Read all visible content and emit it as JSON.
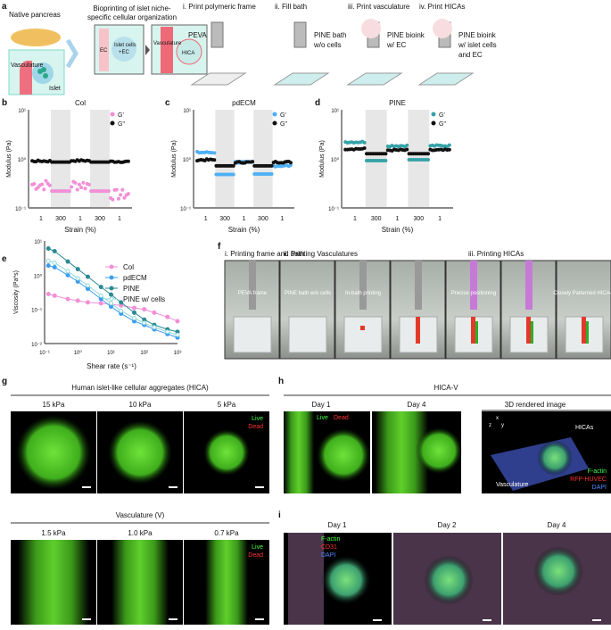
{
  "panel_labels": [
    "a",
    "b",
    "c",
    "d",
    "e",
    "f",
    "g",
    "h",
    "i"
  ],
  "a": {
    "native_title": "Native pancreas",
    "vasculature": "Vasculature",
    "islet": "Islet",
    "bioprint_title_1": "Bioprinting of islet niche-",
    "bioprint_title_2": "specific cellular organization",
    "ec": "EC",
    "islet_cells": "Islet cells",
    "plus_ec": "+EC",
    "vasc_small": "Vasculature",
    "hica": "HICA",
    "steps": [
      {
        "title": "i. Print polymeric frame",
        "desc": [
          "PEVA"
        ]
      },
      {
        "title": "ii. Fill bath",
        "desc": [
          "PINE bath",
          "w/o cells"
        ]
      },
      {
        "title": "iii. Print vasculature",
        "desc": [
          "PINE bioink",
          "w/ EC"
        ]
      },
      {
        "title": "iv. Print HICAs",
        "desc": [
          "PINE bioink",
          "w/ islet cells",
          "and EC"
        ]
      }
    ]
  },
  "chart_data": [
    {
      "type": "scatter",
      "title": "Col",
      "ylabel": "Modulus (Pa)",
      "xlabel": "Strain (%)",
      "yscale": "log",
      "ylim": [
        0.1,
        10
      ],
      "yticks": [
        "10¹",
        "10⁰",
        "10⁻¹"
      ],
      "segments": [
        "1",
        "300",
        "1",
        "300",
        "1"
      ],
      "shaded": [
        1,
        3
      ],
      "legend": "top-right",
      "series": [
        {
          "name": "G'",
          "color": "#f28fd6",
          "values": [
            0.3,
            0.22,
            0.3,
            0.22,
            0.19
          ]
        },
        {
          "name": "G\"",
          "color": "#111111",
          "values": [
            0.9,
            0.86,
            0.92,
            0.86,
            0.88
          ]
        }
      ]
    },
    {
      "type": "scatter",
      "title": "pdECM",
      "ylabel": "Modulus (Pa)",
      "xlabel": "Strain (%)",
      "yscale": "log",
      "ylim": [
        0.1,
        10
      ],
      "yticks": [
        "10¹",
        "10⁰",
        "10⁻¹"
      ],
      "segments": [
        "1",
        "300",
        "1",
        "300",
        "1"
      ],
      "shaded": [
        1,
        3
      ],
      "legend": "top-right",
      "series": [
        {
          "name": "G'",
          "color": "#4fb0f5",
          "values": [
            1.35,
            0.48,
            0.85,
            0.49,
            0.72
          ]
        },
        {
          "name": "G\"",
          "color": "#111111",
          "values": [
            0.95,
            0.72,
            0.85,
            0.72,
            0.86
          ]
        }
      ]
    },
    {
      "type": "scatter",
      "title": "PINE",
      "ylabel": "Modulus (Pa)",
      "xlabel": "Strain (%)",
      "yscale": "log",
      "ylim": [
        0.1,
        10
      ],
      "yticks": [
        "10¹",
        "10⁰",
        "10⁻¹"
      ],
      "segments": [
        "1",
        "300",
        "1",
        "300",
        "1"
      ],
      "shaded": [
        1,
        3
      ],
      "legend": "top-right",
      "series": [
        {
          "name": "G'",
          "color": "#35a3a8",
          "values": [
            2.2,
            0.92,
            1.85,
            0.96,
            1.85
          ]
        },
        {
          "name": "G\"",
          "color": "#111111",
          "values": [
            1.6,
            1.27,
            1.5,
            1.27,
            1.5
          ]
        }
      ]
    },
    {
      "type": "line",
      "xlabel": "Shear rate (s⁻¹)",
      "ylabel": "Viscosity (Pa*s)",
      "xscale": "log",
      "yscale": "log",
      "xlim": [
        0.1,
        1000
      ],
      "ylim": [
        0.01,
        10
      ],
      "xticks": [
        "10⁻¹",
        "10⁰",
        "10¹",
        "10²",
        "10³"
      ],
      "yticks": [
        "10¹",
        "10⁰",
        "10⁻¹",
        "10⁻²"
      ],
      "legend": "top-right",
      "x": [
        0.13,
        0.2,
        0.5,
        1,
        2,
        5,
        10,
        20,
        50,
        100,
        200,
        500,
        1000
      ],
      "series": [
        {
          "name": "Col",
          "color": "#f28fd6",
          "values": [
            0.28,
            0.25,
            0.2,
            0.18,
            0.16,
            0.15,
            0.14,
            0.13,
            0.11,
            0.1,
            0.08,
            0.06,
            0.045
          ]
        },
        {
          "name": "pdECM",
          "color": "#3d9cf0",
          "values": [
            1.9,
            1.7,
            1.0,
            0.65,
            0.4,
            0.2,
            0.12,
            0.075,
            0.045,
            0.035,
            0.026,
            0.019,
            0.015
          ]
        },
        {
          "name": "PINE",
          "color": "#2a8a93",
          "values": [
            6,
            5,
            2.5,
            1.5,
            0.9,
            0.45,
            0.27,
            0.16,
            0.08,
            0.05,
            0.035,
            0.026,
            0.022
          ]
        },
        {
          "name": "PINE w/ cells",
          "color": "#8fd8d8",
          "open": true,
          "values": [
            2.6,
            2.3,
            1.3,
            0.8,
            0.5,
            0.25,
            0.15,
            0.09,
            0.055,
            0.04,
            0.03,
            0.022,
            0.018
          ]
        }
      ]
    }
  ],
  "f": {
    "headers": [
      "i. Printing frame and bath",
      "ii. Printing Vasculatures",
      "iii. Printing HICAs"
    ],
    "annotations": [
      "PEVA frame",
      "PINE bath w/o cells",
      "In-bath printing",
      "",
      "Precise positioning",
      "",
      "Closely Patterned HICA-V"
    ]
  },
  "g": {
    "title_hica": "Human islet-like cellular aggregates (HICA)",
    "hica_labels": [
      "15 kPa",
      "10 kPa",
      "5 kPa"
    ],
    "title_v": "Vasculature (V)",
    "v_labels": [
      "1.5 kPa",
      "1.0 kPa",
      "0.7 kPa"
    ],
    "live": "Live",
    "dead": "Dead"
  },
  "h": {
    "title": "HICA-V",
    "labels": [
      "Day 1",
      "Day 4",
      "3D rendered image"
    ],
    "live": "Live",
    "dead": "Dead",
    "hicas": "HICAs",
    "vasculature": "Vasculature",
    "factin": "F-actin",
    "rfp": "RFP-HUVEC",
    "dapi": "DAPI",
    "axes": [
      "x",
      "y",
      "z"
    ]
  },
  "i": {
    "labels": [
      "Day 1",
      "Day 2",
      "Day 4"
    ],
    "factin": "F-actin",
    "cd31": "CD31",
    "dapi": "DAPI"
  }
}
